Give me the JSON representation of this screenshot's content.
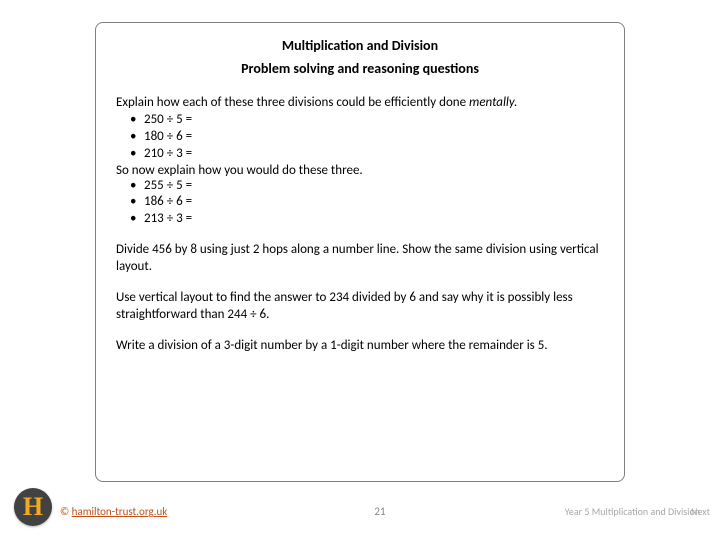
{
  "titles": {
    "main": "Multiplication and Division",
    "sub": "Problem solving and reasoning questions"
  },
  "q1": {
    "intro_a": "Explain how each of these three divisions could be efficiently done ",
    "intro_b": "mentally.",
    "bullets1": [
      "250 ÷ 5 =",
      "180 ÷ 6 =",
      "210 ÷ 3 ="
    ],
    "mid": "So now explain how you would do these three.",
    "bullets2": [
      "255 ÷ 5 =",
      "186 ÷ 6 =",
      "213 ÷ 3 ="
    ]
  },
  "q2": "Divide 456 by 8 using just 2 hops along a number line.  Show the same division using vertical layout.",
  "q3": "Use vertical layout to find the answer to 234 divided by 6 and say why it is possibly less straightforward than 244 ÷ 6.",
  "q4": "Write a division of a 3-digit number by a 1-digit number where the remainder is 5.",
  "footer": {
    "copyright_prefix": "© ",
    "copyright_link": "hamilton-trust.org.uk",
    "page": "21",
    "right": "Year 5 Multiplication and Division",
    "next": "Next"
  },
  "logo": {
    "letter": "H"
  },
  "colors": {
    "frame_border": "#808080",
    "link": "#c05018",
    "muted": "#a8a8a8",
    "logo_bg": "#424242",
    "logo_fg": "#f4a923"
  }
}
